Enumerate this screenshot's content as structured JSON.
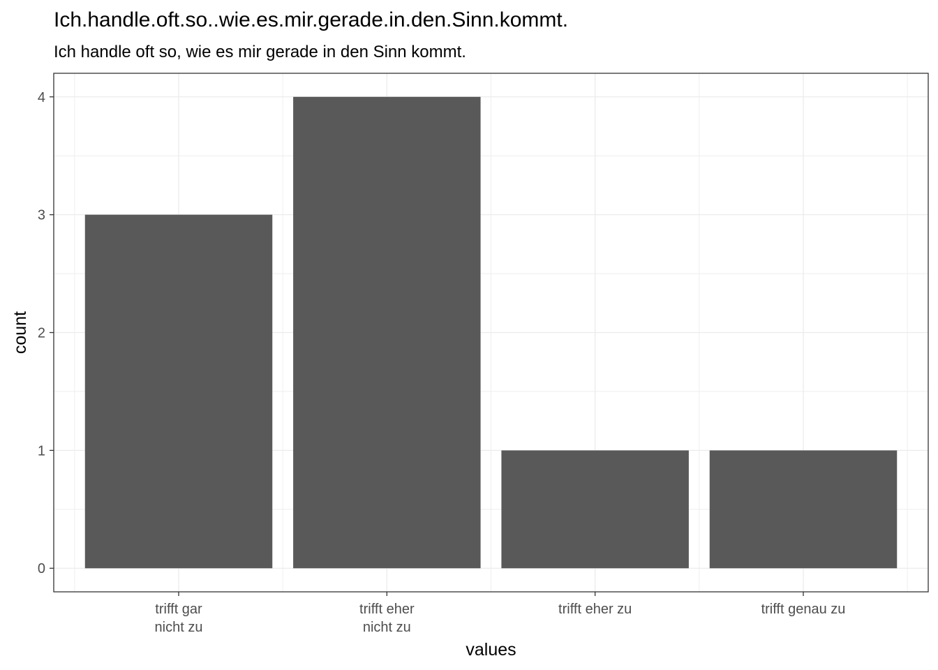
{
  "chart_data": {
    "type": "bar",
    "title": "Ich.handle.oft.so..wie.es.mir.gerade.in.den.Sinn.kommt.",
    "subtitle": "Ich handle oft so, wie es mir gerade in den Sinn kommt.",
    "xlabel": "values",
    "ylabel": "count",
    "categories": [
      [
        "trifft gar",
        "nicht zu"
      ],
      [
        "trifft eher",
        "nicht zu"
      ],
      [
        "trifft eher zu"
      ],
      [
        "trifft genau zu"
      ]
    ],
    "values": [
      3,
      4,
      1,
      1
    ],
    "ylim": [
      -0.2,
      4.2
    ],
    "yticks": [
      0,
      1,
      2,
      3,
      4
    ],
    "bar_color": "#595959",
    "grid": true,
    "grid_color": "#ebebeb",
    "legend": "none"
  }
}
